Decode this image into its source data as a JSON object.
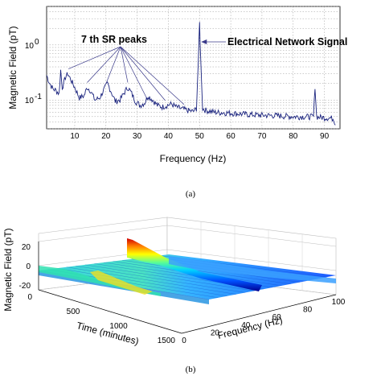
{
  "chart_data": [
    {
      "type": "line",
      "caption": "(a)",
      "xlabel": "Frequency (Hz)",
      "ylabel": "Magnetic Field (pT)",
      "x_ticks": [
        "10",
        "20",
        "30",
        "40",
        "50",
        "60",
        "70",
        "80",
        "90"
      ],
      "y_ticks": [
        "10",
        "10"
      ],
      "y_tick_exponents": [
        "0",
        "-1"
      ],
      "xlim": [
        1,
        95
      ],
      "ylim": [
        0.03,
        5
      ],
      "y_scale": "log",
      "grid": true,
      "line_color": "#1a237e",
      "annotations": [
        {
          "text": "7 th SR peaks",
          "points_to_x": [
            8,
            14,
            20,
            27,
            33,
            39,
            45
          ]
        },
        {
          "text": "Electrical Network Signal",
          "points_to_x": [
            50
          ]
        }
      ],
      "series": [
        {
          "x": [
            1,
            2,
            3,
            4,
            5,
            5.5,
            6,
            6.5,
            7,
            7.8,
            8.5,
            10,
            11.5,
            13,
            14,
            15,
            16.5,
            18,
            19.5,
            20.5,
            21.5,
            23,
            24.5,
            26,
            27,
            28,
            29.5,
            31,
            32.5,
            33.5,
            35,
            36.5,
            38,
            39.5,
            41,
            42.5,
            44,
            45,
            46,
            48,
            49,
            49.6,
            50,
            50.4,
            51,
            52,
            55,
            60,
            65,
            70,
            75,
            80,
            85,
            86.5,
            87,
            87.5,
            88,
            90,
            92,
            93,
            93.5
          ],
          "y": [
            0.28,
            0.2,
            0.16,
            0.15,
            0.13,
            0.35,
            0.17,
            0.2,
            0.26,
            0.3,
            0.25,
            0.17,
            0.11,
            0.12,
            0.17,
            0.15,
            0.1,
            0.11,
            0.16,
            0.2,
            0.15,
            0.095,
            0.1,
            0.14,
            0.17,
            0.14,
            0.095,
            0.08,
            0.09,
            0.12,
            0.1,
            0.08,
            0.075,
            0.08,
            0.085,
            0.075,
            0.07,
            0.068,
            0.065,
            0.062,
            0.07,
            0.5,
            2.5,
            0.5,
            0.07,
            0.065,
            0.06,
            0.058,
            0.055,
            0.053,
            0.052,
            0.05,
            0.05,
            0.05,
            0.18,
            0.05,
            0.049,
            0.048,
            0.047,
            0.046,
            0.035
          ]
        }
      ]
    },
    {
      "type": "surface3d",
      "caption": "(b)",
      "xlabel": "Frequency (Hz)",
      "ylabel": "Time (minutes)",
      "zlabel": "Magnetic Field (pT)",
      "x_ticks": [
        "0",
        "20",
        "40",
        "60",
        "80",
        "100"
      ],
      "y_ticks": [
        "0",
        "500",
        "1000",
        "1500"
      ],
      "z_ticks": [
        "20",
        "0",
        "-20"
      ],
      "xlim": [
        0,
        100
      ],
      "ylim": [
        0,
        1500
      ],
      "zlim": [
        -20,
        20
      ],
      "colormap": "jet",
      "features": [
        {
          "frequency": 50,
          "time_range": [
            0,
            1500
          ],
          "peak_pT": 20
        },
        {
          "frequency": 100,
          "time_range": [
            0,
            1500
          ],
          "peak_pT": 8
        },
        {
          "frequency": 8,
          "time_range": [
            0,
            1500
          ],
          "peak_pT": 6
        }
      ]
    }
  ]
}
